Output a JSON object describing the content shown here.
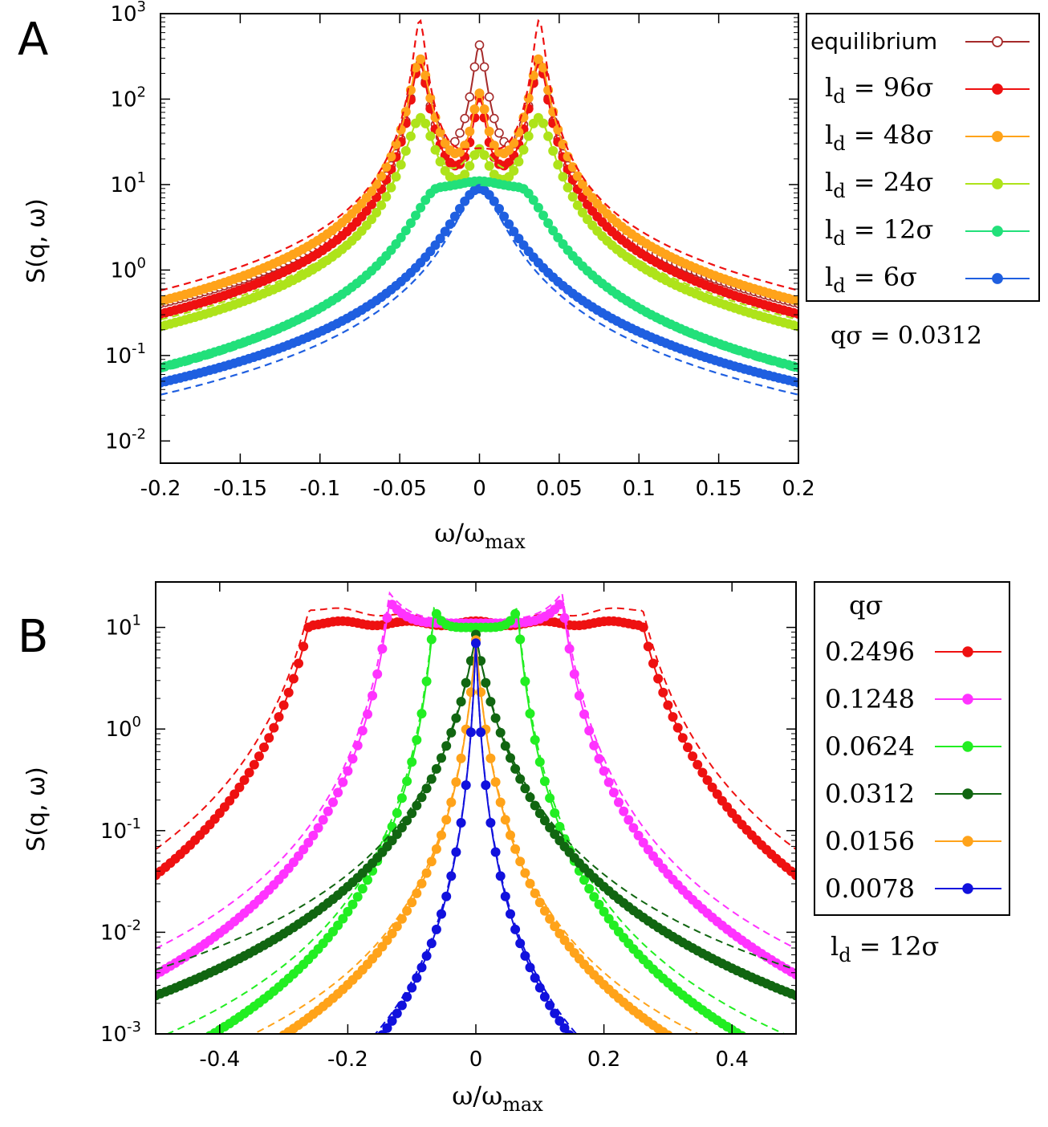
{
  "chart_data": [
    {
      "panel_label": "A",
      "type": "line",
      "ylabel": "S(q, ω)",
      "xlabel_main": "ω/ω",
      "xlabel_sub": "max",
      "x_ticks": [
        "-0.2",
        "-0.15",
        "-0.1",
        "-0.05",
        "0",
        "0.05",
        "0.1",
        "0.15",
        "0.2"
      ],
      "x_tick_values": [
        -0.2,
        -0.15,
        -0.1,
        -0.05,
        0,
        0.05,
        0.1,
        0.15,
        0.2
      ],
      "y_ticks": [
        {
          "base": "10",
          "exp": "-2",
          "value": 0.01
        },
        {
          "base": "10",
          "exp": "-1",
          "value": 0.1
        },
        {
          "base": "10",
          "exp": "0",
          "value": 1
        },
        {
          "base": "10",
          "exp": "1",
          "value": 10
        },
        {
          "base": "10",
          "exp": "2",
          "value": 100
        },
        {
          "base": "10",
          "exp": "3",
          "value": 1000
        }
      ],
      "xlim": [
        -0.2,
        0.2
      ],
      "ylim": [
        0.0055,
        1000
      ],
      "yscale": "log",
      "legend_position": "right-top",
      "annotation": "qσ = 0.0312",
      "series": [
        {
          "name": "equilibrium",
          "color": "#a52a2a",
          "marker": "open-circle",
          "gamma": 0.0042,
          "peak": 0.0375,
          "plateau": 0,
          "center": 420
        },
        {
          "name": "l_d = 96σ",
          "label_main": "l",
          "label_sub": "d",
          "label_rest": " = 96σ",
          "color": "#ee1111",
          "marker": "filled-circle",
          "gamma": 0.0042,
          "peak": 0.0375,
          "plateau": 0,
          "center": 95
        },
        {
          "name": "l_d = 48σ",
          "label_main": "l",
          "label_sub": "d",
          "label_rest": " = 48σ",
          "color": "#ffa31a",
          "marker": "filled-circle",
          "gamma": 0.0048,
          "peak": 0.0375,
          "plateau": 0,
          "center": 105
        },
        {
          "name": "l_d = 24σ",
          "label_main": "l",
          "label_sub": "d",
          "label_rest": " = 24σ",
          "color": "#aee31a",
          "marker": "filled-circle",
          "gamma": 0.0075,
          "peak": 0.037,
          "plateau": 0,
          "center": 19
        },
        {
          "name": "l_d = 12σ",
          "label_main": "l",
          "label_sub": "d",
          "label_rest": " = 12σ",
          "color": "#22e07a",
          "marker": "filled-circle",
          "gamma": 0.014,
          "peak": 0.025,
          "plateau": 1,
          "center": 8.5
        },
        {
          "name": "l_d = 6σ",
          "label_main": "l",
          "label_sub": "d",
          "label_rest": " =   6σ",
          "color": "#1f5fe0",
          "marker": "filled-circle",
          "gamma": 0.014,
          "peak": 0,
          "plateau": 0,
          "center": 7.2
        }
      ],
      "dashed_curves": [
        {
          "color": "#ee1111",
          "kind": "peaks",
          "gamma": 0.003,
          "peak": 0.0375,
          "center": 25
        },
        {
          "color": "#aee31a",
          "kind": "peaks",
          "gamma": 0.0075,
          "peak": 0.037,
          "center": 19
        },
        {
          "color": "#22e07a",
          "kind": "plateau",
          "gamma": 0.014,
          "peak": 0.025,
          "center": 8.0
        },
        {
          "color": "#1f5fe0",
          "kind": "single",
          "gamma": 0.011,
          "peak": 0,
          "center": 7.0
        }
      ]
    },
    {
      "panel_label": "B",
      "type": "line",
      "ylabel": "S(q, ω)",
      "xlabel_main": "ω/ω",
      "xlabel_sub": "max",
      "x_ticks": [
        "-0.4",
        "-0.2",
        "0",
        "0.2",
        "0.4"
      ],
      "x_tick_values": [
        -0.4,
        -0.2,
        0,
        0.2,
        0.4
      ],
      "y_ticks": [
        {
          "base": "10",
          "exp": "-3",
          "value": 0.001
        },
        {
          "base": "10",
          "exp": "-2",
          "value": 0.01
        },
        {
          "base": "10",
          "exp": "-1",
          "value": 0.1
        },
        {
          "base": "10",
          "exp": "0",
          "value": 1
        },
        {
          "base": "10",
          "exp": "1",
          "value": 10
        }
      ],
      "xlim": [
        -0.5,
        0.5
      ],
      "ylim": [
        0.001,
        28
      ],
      "yscale": "log",
      "legend_title": "qσ",
      "legend_position": "right-top",
      "annotation_main": "l",
      "annotation_sub": "d",
      "annotation_rest": " = 12σ",
      "series": [
        {
          "name": "0.2496",
          "color": "#ee1111",
          "marker": "filled-circle",
          "kind": "plateau",
          "edge": 0.26,
          "center": 11,
          "width": 0.055,
          "decay": "power"
        },
        {
          "name": "0.1248",
          "color": "#ff33ff",
          "marker": "filled-circle",
          "kind": "peaks",
          "peak": 0.135,
          "center": 11,
          "peakval": 18,
          "width": 0.028
        },
        {
          "name": "0.0624",
          "color": "#22ee22",
          "marker": "filled-circle",
          "kind": "peaks",
          "peak": 0.065,
          "center": 10,
          "peakval": 15,
          "width": 0.018
        },
        {
          "name": "0.0312",
          "color": "#116611",
          "marker": "filled-circle",
          "kind": "single",
          "peak": 0.0,
          "center": 8.5,
          "width": 0.035
        },
        {
          "name": "0.0156",
          "color": "#ffa31a",
          "marker": "filled-circle",
          "kind": "single",
          "peak": 0.0,
          "center": 7.5,
          "width": 0.016
        },
        {
          "name": "0.0078",
          "color": "#1111dd",
          "marker": "filled-circle",
          "kind": "single",
          "peak": 0.0,
          "center": 7.0,
          "width": 0.008
        }
      ]
    }
  ]
}
